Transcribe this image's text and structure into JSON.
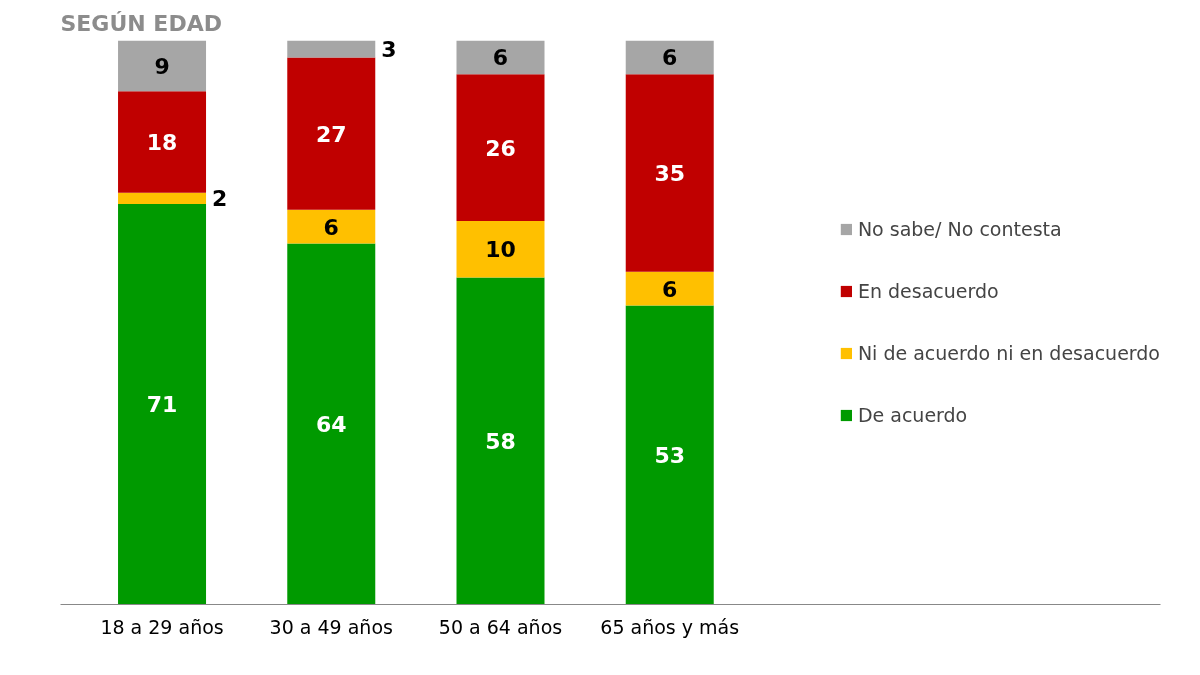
{
  "chart_data": {
    "type": "bar",
    "title": "SEGÚN EDAD",
    "stacked": true,
    "data_labels": true,
    "legend": "right",
    "grid": false,
    "categories": [
      "18 a 29 años",
      "30 a 49 años",
      "50 a 64 años",
      "65 años y más"
    ],
    "series": [
      {
        "name": "De acuerdo",
        "color": "#009a00",
        "values": [
          71,
          64,
          58,
          53
        ]
      },
      {
        "name": "Ni de acuerdo ni en desacuerdo",
        "color": "#ffc000",
        "values": [
          2,
          6,
          10,
          6
        ]
      },
      {
        "name": "En desacuerdo",
        "color": "#c00000",
        "values": [
          18,
          27,
          26,
          35
        ]
      },
      {
        "name": "No sabe/ No contesta",
        "color": "#a6a6a6",
        "values": [
          9,
          3,
          6,
          6
        ]
      }
    ]
  }
}
